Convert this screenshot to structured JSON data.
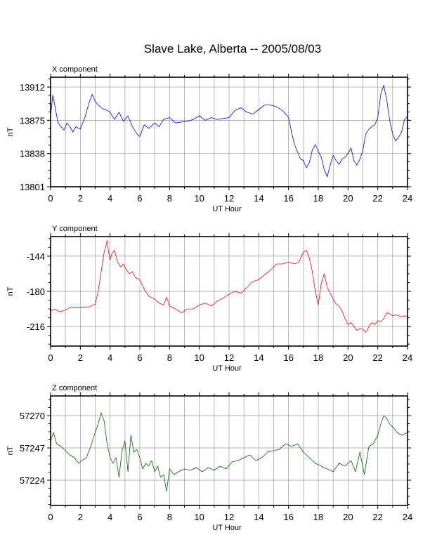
{
  "title": "Slave Lake, Alberta -- 2005/08/03",
  "chart_data": [
    {
      "type": "line",
      "title": "X component",
      "xlabel": "UT Hour",
      "ylabel": "nT",
      "xlim": [
        0,
        24
      ],
      "ylim": [
        13801,
        13923
      ],
      "xticks": [
        0,
        2,
        4,
        6,
        8,
        10,
        12,
        14,
        16,
        18,
        20,
        22,
        24
      ],
      "yticks": [
        13801,
        13838,
        13875,
        13912
      ],
      "grid": true,
      "color": "#0000ff",
      "series": [
        {
          "x": [
            0,
            0.15,
            0.3,
            0.5,
            0.7,
            0.9,
            1.1,
            1.3,
            1.5,
            1.7,
            2.0,
            2.3,
            2.6,
            2.8,
            3.0,
            3.2,
            3.5,
            3.8,
            4.0,
            4.3,
            4.6,
            4.9,
            5.2,
            5.5,
            5.8,
            6.0,
            6.3,
            6.6,
            7.0,
            7.3,
            7.6,
            8.0,
            8.4,
            8.8,
            9.2,
            9.6,
            10.0,
            10.4,
            10.8,
            11.2,
            11.6,
            12.0,
            12.4,
            12.8,
            13.2,
            13.6,
            14.0,
            14.4,
            14.8,
            15.2,
            15.6,
            16.0,
            16.2,
            16.4,
            16.6,
            16.8,
            17.0,
            17.2,
            17.4,
            17.6,
            17.8,
            18.0,
            18.2,
            18.4,
            18.6,
            18.8,
            19.0,
            19.2,
            19.4,
            19.6,
            19.8,
            20.0,
            20.2,
            20.4,
            20.6,
            20.8,
            21.0,
            21.2,
            21.4,
            21.6,
            21.8,
            22.0,
            22.2,
            22.4,
            22.6,
            22.8,
            23.0,
            23.2,
            23.4,
            23.6,
            23.8,
            24.0
          ],
          "values": [
            13880,
            13903,
            13890,
            13872,
            13868,
            13864,
            13872,
            13868,
            13862,
            13868,
            13865,
            13878,
            13895,
            13904,
            13896,
            13892,
            13888,
            13886,
            13884,
            13876,
            13884,
            13874,
            13880,
            13868,
            13860,
            13857,
            13870,
            13866,
            13872,
            13868,
            13876,
            13878,
            13872,
            13873,
            13874,
            13876,
            13880,
            13875,
            13878,
            13876,
            13877,
            13878,
            13886,
            13889,
            13884,
            13882,
            13887,
            13892,
            13892,
            13890,
            13886,
            13878,
            13862,
            13848,
            13840,
            13832,
            13830,
            13822,
            13828,
            13842,
            13848,
            13840,
            13834,
            13820,
            13812,
            13825,
            13836,
            13830,
            13826,
            13832,
            13834,
            13838,
            13844,
            13830,
            13825,
            13832,
            13842,
            13860,
            13865,
            13868,
            13870,
            13878,
            13904,
            13914,
            13898,
            13875,
            13860,
            13852,
            13856,
            13862,
            13876,
            13879
          ]
        }
      ]
    },
    {
      "type": "line",
      "title": "Y component",
      "xlabel": "UT Hour",
      "ylabel": "nT",
      "xlim": [
        0,
        24
      ],
      "ylim": [
        -236,
        -124
      ],
      "xticks": [
        0,
        2,
        4,
        6,
        8,
        10,
        12,
        14,
        16,
        18,
        20,
        22,
        24
      ],
      "yticks": [
        -216,
        -180,
        -144
      ],
      "grid": true,
      "color": "#ff0000",
      "series": [
        {
          "x": [
            0,
            0.3,
            0.6,
            1.0,
            1.4,
            1.8,
            2.2,
            2.6,
            3.0,
            3.2,
            3.4,
            3.6,
            3.7,
            3.8,
            3.9,
            4.0,
            4.1,
            4.3,
            4.5,
            4.7,
            4.9,
            5.1,
            5.3,
            5.5,
            5.7,
            6.0,
            6.3,
            6.6,
            7.0,
            7.3,
            7.6,
            7.8,
            8.0,
            8.4,
            8.8,
            9.2,
            9.6,
            10.0,
            10.4,
            10.8,
            11.2,
            11.6,
            12.0,
            12.4,
            12.8,
            13.2,
            13.6,
            14.0,
            14.4,
            14.8,
            15.2,
            15.6,
            16.0,
            16.4,
            16.7,
            17.0,
            17.2,
            17.4,
            17.6,
            17.8,
            18.0,
            18.2,
            18.4,
            18.6,
            18.8,
            19.0,
            19.2,
            19.4,
            19.6,
            19.8,
            20.0,
            20.2,
            20.4,
            20.6,
            20.8,
            21.0,
            21.2,
            21.4,
            21.6,
            21.8,
            22.0,
            22.2,
            22.4,
            22.6,
            22.8,
            23.0,
            23.2,
            23.4,
            23.6,
            23.8,
            24.0
          ],
          "values": [
            -200,
            -198,
            -201,
            -199,
            -196,
            -197,
            -196,
            -196,
            -193,
            -180,
            -160,
            -140,
            -135,
            -128,
            -140,
            -148,
            -142,
            -138,
            -150,
            -155,
            -152,
            -158,
            -162,
            -160,
            -166,
            -168,
            -178,
            -185,
            -188,
            -192,
            -194,
            -186,
            -195,
            -198,
            -202,
            -198,
            -198,
            -194,
            -192,
            -195,
            -190,
            -187,
            -183,
            -180,
            -182,
            -176,
            -170,
            -168,
            -163,
            -158,
            -152,
            -152,
            -150,
            -152,
            -150,
            -140,
            -138,
            -146,
            -160,
            -180,
            -194,
            -172,
            -162,
            -176,
            -182,
            -188,
            -193,
            -195,
            -200,
            -208,
            -214,
            -212,
            -216,
            -220,
            -218,
            -219,
            -222,
            -216,
            -212,
            -214,
            -210,
            -211,
            -208,
            -202,
            -203,
            -205,
            -204,
            -205,
            -206,
            -205,
            -206
          ]
        }
      ]
    },
    {
      "type": "line",
      "title": "Z component",
      "xlabel": "UT Hour",
      "ylabel": "nT",
      "xlim": [
        0,
        24
      ],
      "ylim": [
        57206,
        57284
      ],
      "xticks": [
        0,
        2,
        4,
        6,
        8,
        10,
        12,
        14,
        16,
        18,
        20,
        22,
        24
      ],
      "yticks": [
        57224,
        57247,
        57270
      ],
      "grid": true,
      "color": "#006400",
      "series": [
        {
          "x": [
            0,
            0.2,
            0.4,
            0.7,
            1.0,
            1.3,
            1.6,
            1.9,
            2.1,
            2.4,
            2.7,
            3.0,
            3.2,
            3.4,
            3.6,
            3.8,
            4.0,
            4.2,
            4.4,
            4.6,
            4.8,
            5.0,
            5.2,
            5.4,
            5.6,
            5.8,
            6.0,
            6.2,
            6.4,
            6.6,
            6.8,
            7.0,
            7.2,
            7.4,
            7.6,
            7.8,
            8.0,
            8.3,
            8.6,
            9.0,
            9.4,
            9.8,
            10.2,
            10.6,
            11.0,
            11.4,
            11.8,
            12.2,
            12.6,
            13.0,
            13.4,
            13.8,
            14.2,
            14.6,
            15.0,
            15.4,
            15.8,
            16.2,
            16.6,
            17.0,
            17.4,
            17.8,
            18.2,
            18.6,
            19.0,
            19.4,
            19.8,
            20.2,
            20.5,
            20.8,
            21.1,
            21.4,
            21.7,
            22.0,
            22.2,
            22.4,
            22.6,
            22.8,
            23.0,
            23.3,
            23.6,
            24.0
          ],
          "values": [
            57252,
            57258,
            57250,
            57248,
            57245,
            57242,
            57240,
            57236,
            57238,
            57240,
            57248,
            57258,
            57264,
            57272,
            57266,
            57250,
            57240,
            57236,
            57240,
            57226,
            57245,
            57252,
            57230,
            57256,
            57244,
            57246,
            57240,
            57232,
            57236,
            57234,
            57238,
            57230,
            57234,
            57226,
            57228,
            57216,
            57232,
            57228,
            57230,
            57232,
            57231,
            57233,
            57230,
            57233,
            57231,
            57234,
            57232,
            57237,
            57238,
            57240,
            57242,
            57238,
            57240,
            57244,
            57245,
            57246,
            57250,
            57248,
            57250,
            57244,
            57240,
            57236,
            57234,
            57232,
            57230,
            57236,
            57234,
            57238,
            57230,
            57244,
            57228,
            57248,
            57250,
            57256,
            57264,
            57270,
            57268,
            57264,
            57262,
            57258,
            57256,
            57258
          ]
        }
      ]
    }
  ]
}
